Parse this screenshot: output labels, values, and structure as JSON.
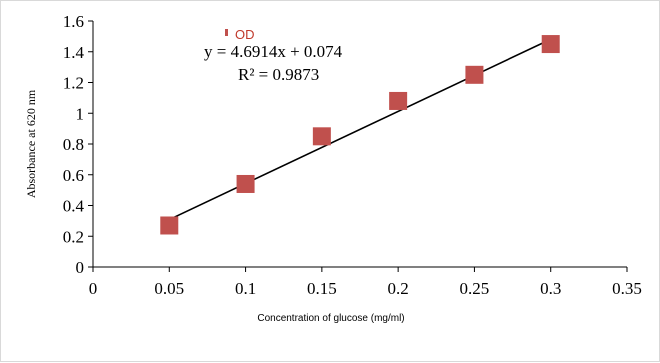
{
  "chart_data": {
    "type": "scatter",
    "xlabel": "Concentration of glucose (mg/ml)",
    "ylabel": "Absorbance at 620 nm",
    "xlim": [
      0,
      0.35
    ],
    "ylim": [
      0,
      1.6
    ],
    "xticks": [
      0,
      0.05,
      0.1,
      0.15,
      0.2,
      0.25,
      0.3,
      0.35
    ],
    "yticks": [
      0,
      0.2,
      0.4,
      0.6,
      0.8,
      1,
      1.2,
      1.4,
      1.6
    ],
    "xtick_labels": [
      "0",
      "0.05",
      "0.1",
      "0.15",
      "0.2",
      "0.25",
      "0.3",
      "0.35"
    ],
    "ytick_labels": [
      "0",
      "0.2",
      "0.4",
      "0.6",
      "0.8",
      "1",
      "1.2",
      "1.4",
      "1.6"
    ],
    "grid": false,
    "legend_position": "top-center",
    "series": [
      {
        "name": "OD",
        "color": "#c0504d",
        "marker": "square",
        "x": [
          0.05,
          0.1,
          0.15,
          0.2,
          0.25,
          0.3
        ],
        "y": [
          0.27,
          0.54,
          0.85,
          1.08,
          1.25,
          1.45
        ]
      }
    ],
    "trendline": {
      "type": "linear",
      "slope": 4.6914,
      "intercept": 0.074,
      "x_range": [
        0.05,
        0.3
      ],
      "color": "#000000",
      "equation": "y = 4.6914x + 0.074",
      "r_squared": "R² = 0.9873"
    }
  }
}
